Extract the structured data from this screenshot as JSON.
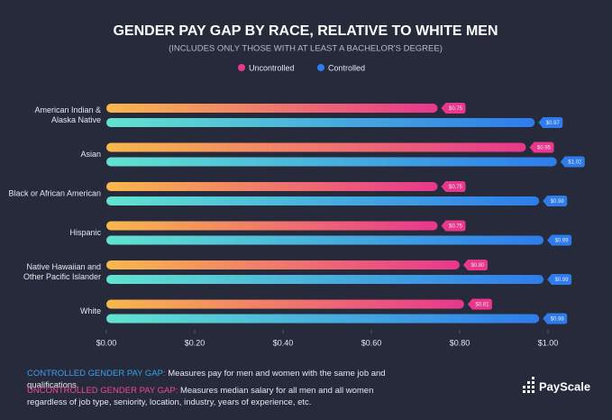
{
  "chart_data": {
    "type": "bar",
    "orientation": "horizontal",
    "title": "GENDER PAY GAP BY RACE, RELATIVE TO WHITE MEN",
    "subtitle": "(INCLUDES ONLY THOSE WITH AT LEAST A BACHELOR'S DEGREE)",
    "categories": [
      [
        "American Indian &",
        "Alaska Native"
      ],
      [
        "Asian"
      ],
      [
        "Black or African American"
      ],
      [
        "Hispanic"
      ],
      [
        "Native Hawaiian and",
        "Other Pacific Islander"
      ],
      [
        "White"
      ]
    ],
    "series": [
      {
        "name": "Uncontrolled",
        "color": [
          "#f8b84b",
          "#e8378d"
        ],
        "values": [
          0.75,
          0.95,
          0.75,
          0.75,
          0.8,
          0.81
        ],
        "value_labels": [
          "$0.75",
          "$0.95",
          "$0.75",
          "$0.75",
          "$0.80",
          "$0.81"
        ]
      },
      {
        "name": "Controlled",
        "color": [
          "#62e3cf",
          "#2e7ceb"
        ],
        "values": [
          0.97,
          1.02,
          0.98,
          0.99,
          0.99,
          0.98
        ],
        "value_labels": [
          "$0.97",
          "$1.02",
          "$0.98",
          "$0.99",
          "$0.99",
          "$0.98"
        ]
      }
    ],
    "xlim": [
      0,
      1.0
    ],
    "xticks": [
      {
        "value": 0,
        "label": "$0.00"
      },
      {
        "value": 0.2,
        "label": "$0.20"
      },
      {
        "value": 0.4,
        "label": "$0.40"
      },
      {
        "value": 0.6,
        "label": "$0.60"
      },
      {
        "value": 0.8,
        "label": "$0.80"
      },
      {
        "value": 1.0,
        "label": "$1.00"
      }
    ],
    "notes": [
      {
        "term": "CONTROLLED GENDER PAY GAP:",
        "text": "Measures pay for men and women with the same job and qualifications."
      },
      {
        "term": "UNCONTROLLED GENDER PAY GAP:",
        "text": "Measures median salary for all men and all women regardless of job type, seniority, location, industry, years of experience, etc."
      }
    ],
    "logo": "PayScale"
  }
}
